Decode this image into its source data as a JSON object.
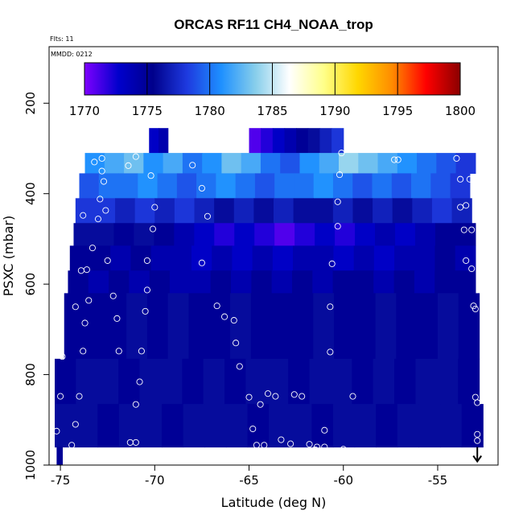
{
  "chart_data": {
    "type": "heatmap",
    "title": "ORCAS RF11 CH4_NOAA_trop",
    "flights_label": "Flts: 11",
    "date_label": "MMDD: 0212",
    "xlabel": "Latitude (deg N)",
    "ylabel": "PSXC (mbar)",
    "xlim": [
      -75.6,
      -51.8
    ],
    "ylim": [
      1000,
      75
    ],
    "x_ticks": [
      -75,
      -70,
      -65,
      -60,
      -55
    ],
    "x_tick_labels": [
      "-75",
      "-70",
      "-65",
      "-60",
      "-55"
    ],
    "y_ticks": [
      200,
      400,
      600,
      800,
      1000
    ],
    "y_tick_labels": [
      "200",
      "400",
      "600",
      "800",
      "1000"
    ],
    "colorbar": {
      "min": 1770,
      "max": 1800,
      "ticks": [
        1770,
        1775,
        1780,
        1785,
        1790,
        1795,
        1800
      ],
      "tick_labels": [
        "1770",
        "1775",
        "1780",
        "1785",
        "1790",
        "1795",
        "1800"
      ],
      "colors": [
        "#7f00ff",
        "#0000cc",
        "#00008b",
        "#1e3adf",
        "#1e90ff",
        "#87ceeb",
        "#ffffff",
        "#ffff8a",
        "#ffd700",
        "#ff8c00",
        "#ff0000",
        "#8b0000"
      ]
    },
    "layers": [
      {
        "p_top": 255,
        "p_bot": 310,
        "lat_min": -70.3,
        "lat_max": -69.3,
        "values": [
          1773,
          1774
        ]
      },
      {
        "p_top": 255,
        "p_bot": 310,
        "lat_min": -65.0,
        "lat_max": -60.0,
        "values": [
          1771,
          1772,
          1773,
          1774,
          1775,
          1776,
          1777,
          1778
        ]
      },
      {
        "p_top": 310,
        "p_bot": 355,
        "lat_min": -73.7,
        "lat_max": -53.0,
        "values": [
          1781,
          1782,
          1783,
          1781,
          1782,
          1780,
          1781,
          1783,
          1782,
          1780,
          1779,
          1781,
          1782,
          1784,
          1783,
          1782,
          1781,
          1780,
          1779,
          1778
        ]
      },
      {
        "p_top": 355,
        "p_bot": 410,
        "lat_min": -74.0,
        "lat_max": -53.3,
        "values": [
          1779,
          1780,
          1780,
          1781,
          1780,
          1779,
          1780,
          1781,
          1780,
          1779,
          1780,
          1780,
          1781,
          1780,
          1779,
          1780,
          1779,
          1780,
          1779,
          1778
        ]
      },
      {
        "p_top": 410,
        "p_bot": 465,
        "lat_min": -74.2,
        "lat_max": -53.2,
        "values": [
          1778,
          1778,
          1777,
          1778,
          1777,
          1778,
          1777,
          1776,
          1777,
          1776,
          1777,
          1776,
          1776,
          1777,
          1776,
          1777,
          1776,
          1777,
          1778,
          1777
        ]
      },
      {
        "p_top": 465,
        "p_bot": 515,
        "lat_min": -74.3,
        "lat_max": -53.0,
        "values": [
          1776,
          1776,
          1775,
          1776,
          1775,
          1774,
          1773,
          1772,
          1773,
          1772,
          1771,
          1772,
          1773,
          1772,
          1773,
          1774,
          1773,
          1774,
          1775,
          1775
        ]
      },
      {
        "p_top": 515,
        "p_bot": 570,
        "lat_min": -74.5,
        "lat_max": -53.0,
        "values": [
          1775,
          1775,
          1774,
          1775,
          1774,
          1774,
          1773,
          1774,
          1773,
          1774,
          1773,
          1774,
          1774,
          1773,
          1774,
          1773,
          1774,
          1774,
          1775,
          1774
        ]
      },
      {
        "p_top": 570,
        "p_bot": 620,
        "lat_min": -74.6,
        "lat_max": -53.0,
        "values": [
          1775,
          1774,
          1775,
          1774,
          1775,
          1774,
          1774,
          1775,
          1774,
          1775,
          1774,
          1775,
          1774,
          1775,
          1775,
          1774,
          1775,
          1774,
          1775,
          1775
        ]
      },
      {
        "p_top": 620,
        "p_bot": 765,
        "lat_min": -74.8,
        "lat_max": -52.8,
        "values": [
          1775,
          1775,
          1775,
          1776,
          1775,
          1776,
          1775,
          1775,
          1776,
          1775,
          1775,
          1775,
          1776,
          1775,
          1775,
          1776,
          1775,
          1775,
          1776,
          1775
        ]
      },
      {
        "p_top": 765,
        "p_bot": 865,
        "lat_min": -75.3,
        "lat_max": -52.8,
        "values": [
          1775,
          1776,
          1776,
          1775,
          1776,
          1776,
          1775,
          1776,
          1775,
          1776,
          1776,
          1775,
          1776,
          1776,
          1775,
          1776,
          1775,
          1776,
          1776,
          1775
        ]
      },
      {
        "p_top": 865,
        "p_bot": 960,
        "lat_min": -75.3,
        "lat_max": -52.6,
        "values": [
          1776,
          1776,
          1775,
          1776,
          1776,
          1775,
          1776,
          1776,
          1776,
          1775,
          1776,
          1776,
          1775,
          1776,
          1776,
          1775,
          1776,
          1776,
          1776,
          1775
        ]
      },
      {
        "p_top": 960,
        "p_bot": 1000,
        "lat_min": -75.2,
        "lat_max": -74.9,
        "values": [
          1775
        ]
      }
    ],
    "points": [
      [
        -72.8,
        322
      ],
      [
        -71.4,
        338
      ],
      [
        -71.0,
        318
      ],
      [
        -68.0,
        337
      ],
      [
        -60.1,
        310
      ],
      [
        -57.3,
        325
      ],
      [
        -57.1,
        325
      ],
      [
        -54.0,
        322
      ],
      [
        -73.2,
        330
      ],
      [
        -72.8,
        350
      ],
      [
        -72.7,
        373
      ],
      [
        -70.2,
        360
      ],
      [
        -67.5,
        388
      ],
      [
        -60.2,
        358
      ],
      [
        -53.8,
        368
      ],
      [
        -53.3,
        368
      ],
      [
        -72.9,
        412
      ],
      [
        -72.6,
        437
      ],
      [
        -70.0,
        430
      ],
      [
        -67.2,
        450
      ],
      [
        -60.3,
        418
      ],
      [
        -53.8,
        430
      ],
      [
        -73.8,
        448
      ],
      [
        -73.0,
        456
      ],
      [
        -53.5,
        426
      ],
      [
        -70.1,
        478
      ],
      [
        -60.3,
        472
      ],
      [
        -53.6,
        480
      ],
      [
        -53.2,
        480
      ],
      [
        -73.3,
        520
      ],
      [
        -73.9,
        570
      ],
      [
        -72.5,
        548
      ],
      [
        -70.4,
        548
      ],
      [
        -67.5,
        553
      ],
      [
        -60.6,
        555
      ],
      [
        -53.5,
        548
      ],
      [
        -53.2,
        566
      ],
      [
        -73.6,
        568
      ],
      [
        -70.4,
        613
      ],
      [
        -74.2,
        650
      ],
      [
        -73.5,
        636
      ],
      [
        -72.2,
        626
      ],
      [
        -72.0,
        676
      ],
      [
        -70.5,
        660
      ],
      [
        -66.7,
        648
      ],
      [
        -66.3,
        672
      ],
      [
        -65.8,
        680
      ],
      [
        -65.7,
        730
      ],
      [
        -73.7,
        686
      ],
      [
        -60.7,
        650
      ],
      [
        -53.1,
        648
      ],
      [
        -53.0,
        655
      ],
      [
        -73.8,
        748
      ],
      [
        -71.9,
        748
      ],
      [
        -70.7,
        748
      ],
      [
        -65.5,
        782
      ],
      [
        -60.7,
        750
      ],
      [
        -74.9,
        760
      ],
      [
        -70.8,
        816
      ],
      [
        -71.0,
        866
      ],
      [
        -74.0,
        848
      ],
      [
        -75.0,
        848
      ],
      [
        -64.0,
        842
      ],
      [
        -63.6,
        848
      ],
      [
        -62.6,
        844
      ],
      [
        -62.2,
        848
      ],
      [
        -65.0,
        850
      ],
      [
        -64.4,
        866
      ],
      [
        -59.5,
        848
      ],
      [
        -53.0,
        850
      ],
      [
        -52.9,
        862
      ],
      [
        -74.2,
        910
      ],
      [
        -75.2,
        925
      ],
      [
        -74.4,
        956
      ],
      [
        -71.3,
        950
      ],
      [
        -71.0,
        950
      ],
      [
        -64.8,
        920
      ],
      [
        -64.6,
        956
      ],
      [
        -64.2,
        956
      ],
      [
        -63.3,
        944
      ],
      [
        -62.8,
        953
      ],
      [
        -61.8,
        954
      ],
      [
        -61.4,
        960
      ],
      [
        -61.0,
        960
      ],
      [
        -61.0,
        923
      ],
      [
        -61.5,
        966
      ],
      [
        -60.0,
        965
      ],
      [
        -52.9,
        932
      ],
      [
        -52.9,
        946
      ]
    ],
    "marker": {
      "lat": -52.9,
      "pressure": 960,
      "symbol": "arrow-down"
    }
  }
}
